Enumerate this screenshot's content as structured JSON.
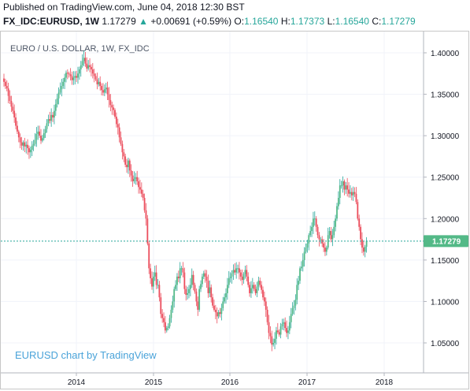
{
  "header": {
    "published": "Published on TradingView.com, June 04, 2018 12:30 BST",
    "symbol": "FX_IDC:EURUSD, 1W",
    "last": "1.17279",
    "arrow": "▲",
    "change": "+0.00691 (+0.59%)",
    "o_label": "O:",
    "o_val": "1.16540",
    "h_label": "H:",
    "h_val": "1.17373",
    "l_label": "L:",
    "l_val": "1.16540",
    "c_label": "C:",
    "c_val": "1.17279"
  },
  "chart": {
    "title": "EURO / U.S. DOLLAR, 1W, FX_IDC",
    "watermark": "EURUSD chart by TradingView",
    "current_price_label": "1.17279",
    "colors": {
      "up": "#26a69a",
      "up_body": "#53b987",
      "down": "#eb4d5c",
      "grid": "#f0f3fa",
      "price_line": "#26a69a",
      "axis_text": "#131722"
    }
  },
  "chart_data": {
    "type": "candlestick",
    "title": "EURO / U.S. DOLLAR, 1W, FX_IDC",
    "ylim": [
      1.03,
      1.42
    ],
    "y_ticks": [
      "1.40000",
      "1.35000",
      "1.30000",
      "1.25000",
      "1.20000",
      "1.15000",
      "1.10000",
      "1.05000"
    ],
    "x_ticks": [
      "2014",
      "2015",
      "2016",
      "2017",
      "2018"
    ],
    "current_price": 1.17279,
    "grid": true,
    "closes": [
      1.365,
      1.36,
      1.357,
      1.348,
      1.342,
      1.335,
      1.33,
      1.322,
      1.312,
      1.305,
      1.298,
      1.292,
      1.288,
      1.292,
      1.287,
      1.289,
      1.285,
      1.28,
      1.283,
      1.288,
      1.29,
      1.295,
      1.302,
      1.305,
      1.3,
      1.294,
      1.297,
      1.303,
      1.308,
      1.315,
      1.32,
      1.318,
      1.325,
      1.322,
      1.33,
      1.338,
      1.345,
      1.352,
      1.356,
      1.36,
      1.365,
      1.37,
      1.376,
      1.375,
      1.374,
      1.372,
      1.367,
      1.37,
      1.372,
      1.37,
      1.375,
      1.38,
      1.385,
      1.39,
      1.394,
      1.387,
      1.381,
      1.385,
      1.383,
      1.38,
      1.375,
      1.372,
      1.368,
      1.362,
      1.365,
      1.36,
      1.355,
      1.352,
      1.356,
      1.358,
      1.35,
      1.343,
      1.337,
      1.334,
      1.331,
      1.323,
      1.314,
      1.31,
      1.298,
      1.29,
      1.28,
      1.275,
      1.265,
      1.262,
      1.27,
      1.258,
      1.252,
      1.245,
      1.248,
      1.25,
      1.245,
      1.238,
      1.235,
      1.23,
      1.225,
      1.21,
      1.2,
      1.17,
      1.14,
      1.128,
      1.118,
      1.13,
      1.135,
      1.12,
      1.12,
      1.105,
      1.085,
      1.08,
      1.075,
      1.065,
      1.068,
      1.07,
      1.08,
      1.09,
      1.1,
      1.115,
      1.12,
      1.13,
      1.128,
      1.14,
      1.14,
      1.135,
      1.115,
      1.108,
      1.11,
      1.115,
      1.12,
      1.132,
      1.12,
      1.112,
      1.1,
      1.09,
      1.115,
      1.121,
      1.13,
      1.134,
      1.13,
      1.125,
      1.11,
      1.117,
      1.105,
      1.095,
      1.09,
      1.087,
      1.082,
      1.087,
      1.085,
      1.092,
      1.1,
      1.105,
      1.11,
      1.12,
      1.128,
      1.13,
      1.134,
      1.138,
      1.135,
      1.14,
      1.14,
      1.135,
      1.13,
      1.126,
      1.133,
      1.138,
      1.13,
      1.12,
      1.11,
      1.116,
      1.12,
      1.115,
      1.11,
      1.118,
      1.125,
      1.12,
      1.114,
      1.105,
      1.1,
      1.09,
      1.075,
      1.062,
      1.058,
      1.048,
      1.05,
      1.055,
      1.065,
      1.063,
      1.06,
      1.07,
      1.073,
      1.075,
      1.068,
      1.062,
      1.065,
      1.075,
      1.085,
      1.092,
      1.095,
      1.102,
      1.12,
      1.125,
      1.14,
      1.142,
      1.15,
      1.16,
      1.165,
      1.17,
      1.18,
      1.185,
      1.19,
      1.2,
      1.2,
      1.19,
      1.18,
      1.175,
      1.175,
      1.17,
      1.165,
      1.16,
      1.165,
      1.18,
      1.185,
      1.175,
      1.18,
      1.19,
      1.2,
      1.215,
      1.225,
      1.24,
      1.24,
      1.245,
      1.235,
      1.24,
      1.235,
      1.23,
      1.232,
      1.228,
      1.232,
      1.23,
      1.22,
      1.2,
      1.19,
      1.175,
      1.165,
      1.16,
      1.166,
      1.173
    ]
  }
}
